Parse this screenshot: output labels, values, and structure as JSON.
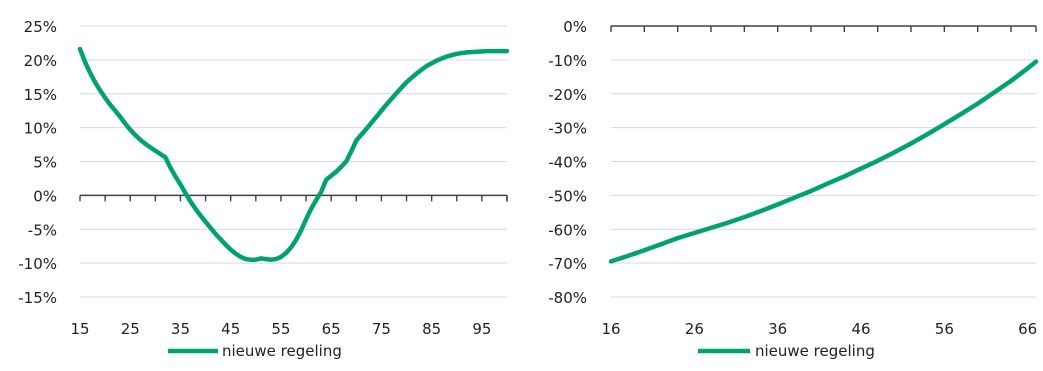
{
  "chart_data": [
    {
      "type": "line",
      "title": "",
      "xlabel": "",
      "ylabel": "",
      "xlim": [
        15,
        100
      ],
      "ylim": [
        -15,
        25
      ],
      "x_ticks": [
        15,
        25,
        35,
        45,
        55,
        65,
        75,
        85,
        95
      ],
      "x_tick_labels": [
        "15",
        "25",
        "35",
        "45",
        "55",
        "65",
        "75",
        "85",
        "95"
      ],
      "y_ticks": [
        25,
        20,
        15,
        10,
        5,
        0,
        -5,
        -10,
        -15
      ],
      "y_tick_labels": [
        "25%",
        "20%",
        "15%",
        "10%",
        "5%",
        "0%",
        "-5%",
        "-10%",
        "-15%"
      ],
      "grid": true,
      "legend_position": "bottom",
      "series": [
        {
          "name": "nieuwe regeling",
          "color": "#00a36c",
          "x": [
            15,
            16,
            17,
            18,
            19,
            20,
            21,
            22,
            23,
            24,
            25,
            26,
            27,
            28,
            29,
            30,
            31,
            32,
            33,
            34,
            35,
            36,
            37,
            38,
            39,
            40,
            41,
            42,
            43,
            44,
            45,
            46,
            47,
            48,
            49,
            50,
            51,
            52,
            53,
            54,
            55,
            56,
            57,
            58,
            59,
            60,
            61,
            62,
            63,
            64,
            65,
            66,
            67,
            68,
            69,
            70,
            72,
            74,
            76,
            78,
            80,
            82,
            84,
            86,
            88,
            90,
            92,
            94,
            96,
            98,
            100
          ],
          "y": [
            21.6,
            19.7,
            18.1,
            16.7,
            15.5,
            14.4,
            13.4,
            12.5,
            11.6,
            10.6,
            9.7,
            8.9,
            8.2,
            7.6,
            7.1,
            6.6,
            6.1,
            5.6,
            4.1,
            2.8,
            1.6,
            0.3,
            -0.9,
            -2.0,
            -3.0,
            -3.9,
            -4.8,
            -5.7,
            -6.5,
            -7.3,
            -8.0,
            -8.6,
            -9.1,
            -9.4,
            -9.5,
            -9.5,
            -9.3,
            -9.4,
            -9.5,
            -9.4,
            -9.1,
            -8.5,
            -7.7,
            -6.6,
            -5.2,
            -3.5,
            -2.0,
            -0.7,
            0.5,
            2.3,
            2.9,
            3.5,
            4.2,
            5.0,
            6.5,
            8.1,
            9.8,
            11.6,
            13.4,
            15.1,
            16.7,
            18.0,
            19.1,
            19.9,
            20.5,
            20.9,
            21.1,
            21.2,
            21.3,
            21.3,
            21.3
          ]
        }
      ]
    },
    {
      "type": "line",
      "title": "",
      "xlabel": "",
      "ylabel": "",
      "xlim": [
        16,
        67
      ],
      "ylim": [
        -80,
        0
      ],
      "x_ticks": [
        16,
        26,
        36,
        46,
        56,
        66
      ],
      "x_tick_labels": [
        "16",
        "26",
        "36",
        "46",
        "56",
        "66"
      ],
      "y_ticks": [
        0,
        -10,
        -20,
        -30,
        -40,
        -50,
        -60,
        -70,
        -80
      ],
      "y_tick_labels": [
        "0%",
        "-10%",
        "-20%",
        "-30%",
        "-40%",
        "-50%",
        "-60%",
        "-70%",
        "-80%"
      ],
      "grid": true,
      "legend_position": "bottom",
      "series": [
        {
          "name": "nieuwe regeling",
          "color": "#00a36c",
          "x": [
            16,
            18,
            20,
            22,
            24,
            26,
            28,
            30,
            32,
            34,
            36,
            38,
            40,
            42,
            44,
            46,
            48,
            50,
            52,
            54,
            56,
            58,
            60,
            62,
            64,
            66,
            67
          ],
          "y": [
            -69.5,
            -67.9,
            -66.2,
            -64.4,
            -62.6,
            -61.1,
            -59.6,
            -58.1,
            -56.4,
            -54.6,
            -52.7,
            -50.7,
            -48.7,
            -46.5,
            -44.4,
            -42.1,
            -39.8,
            -37.3,
            -34.7,
            -31.9,
            -29.0,
            -26.0,
            -22.9,
            -19.6,
            -16.2,
            -12.5,
            -10.5
          ]
        }
      ]
    }
  ]
}
